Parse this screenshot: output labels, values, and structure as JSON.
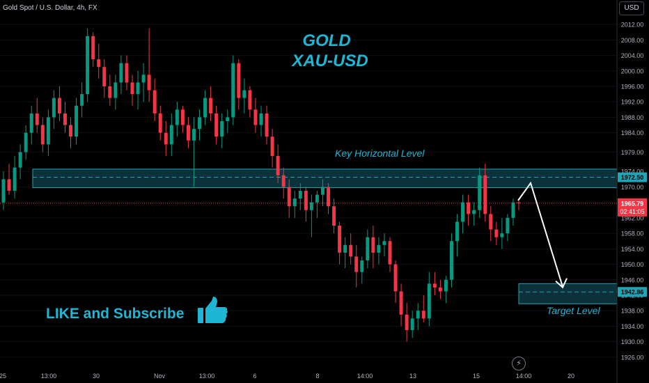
{
  "header": {
    "symbol_label": "Gold Spot / U.S. Dollar, 4h, FX"
  },
  "currency_button": "USD",
  "annotations": {
    "title_line1": "GOLD",
    "title_line2": "XAU-USD",
    "key_level_label": "Key Horizontal Level",
    "target_label": "Target Level",
    "cta": "LIKE and Subscribe"
  },
  "price_tags": {
    "key_level": "1972.50",
    "current_price": "1965.79",
    "countdown": "02:41:05",
    "target": "1942.86"
  },
  "colors": {
    "bull": "#089981",
    "bear": "#f23645",
    "zone_fill": "#0d3b45",
    "zone_border": "#1fa5b5",
    "accent_text": "#1fb6d6",
    "thumbs_up": "#1fb6d6"
  },
  "icons": {
    "thumbs": "thumbs-up-icon",
    "bolt": "lightning-icon"
  },
  "chart_data": {
    "type": "candlestick",
    "ylim": [
      1924,
      2014
    ],
    "y_ticks": [
      2012.0,
      2008.0,
      2004.0,
      2000.0,
      1996.0,
      1992.0,
      1988.0,
      1984.0,
      1979.0,
      1974.0,
      1970.0,
      1966.0,
      1962.0,
      1958.0,
      1954.0,
      1950.0,
      1946.0,
      1942.0,
      1938.0,
      1934.0,
      1930.0,
      1926.0
    ],
    "x_ticks": [
      "25",
      "13:00",
      "30",
      "Nov",
      "13:00",
      "6",
      "8",
      "14:00",
      "13",
      "15",
      "14:00",
      "20"
    ],
    "zones": [
      {
        "name": "Key Horizontal Level",
        "low": 1969.8,
        "high": 1974.6,
        "mid": 1972.5
      },
      {
        "name": "Target Level",
        "low": 1939.8,
        "high": 1945.0,
        "mid": 1942.86
      }
    ],
    "current_price": 1965.79,
    "projection": [
      [
        1971.0,
        1977.5
      ],
      [
        1971.0,
        1966.5
      ],
      [
        1943.5
      ]
    ],
    "candles": [
      [
        1966,
        1974,
        1964,
        1972
      ],
      [
        1972,
        1976,
        1968,
        1969
      ],
      [
        1969,
        1978,
        1967,
        1975
      ],
      [
        1975,
        1981,
        1972,
        1979
      ],
      [
        1979,
        1986,
        1977,
        1984
      ],
      [
        1984,
        1991,
        1981,
        1989
      ],
      [
        1989,
        1993,
        1984,
        1986
      ],
      [
        1986,
        1988,
        1979,
        1981
      ],
      [
        1981,
        1990,
        1978,
        1988
      ],
      [
        1988,
        1995,
        1985,
        1993
      ],
      [
        1993,
        1996,
        1987,
        1989
      ],
      [
        1989,
        1992,
        1984,
        1986
      ],
      [
        1986,
        1988,
        1980,
        1983
      ],
      [
        1983,
        1993,
        1981,
        1991
      ],
      [
        1991,
        1997,
        1988,
        1994
      ],
      [
        1994,
        2011,
        1992,
        2009
      ],
      [
        2009,
        2010,
        2001,
        2003
      ],
      [
        2003,
        2007,
        1998,
        2001
      ],
      [
        2001,
        2003,
        1993,
        1996
      ],
      [
        1996,
        1999,
        1991,
        1993
      ],
      [
        1993,
        1999,
        1990,
        1997
      ],
      [
        1997,
        2004,
        1994,
        2002
      ],
      [
        2002,
        2004,
        1995,
        1997
      ],
      [
        1997,
        1999,
        1991,
        1994
      ],
      [
        1994,
        2000,
        1990,
        1997
      ],
      [
        1997,
        2002,
        1992,
        1999
      ],
      [
        1999,
        2011,
        1992,
        1995
      ],
      [
        1995,
        1998,
        1987,
        1989
      ],
      [
        1989,
        1991,
        1982,
        1984
      ],
      [
        1984,
        1987,
        1978,
        1981
      ],
      [
        1981,
        1989,
        1978,
        1986
      ],
      [
        1986,
        1992,
        1983,
        1990
      ],
      [
        1990,
        1991,
        1984,
        1986
      ],
      [
        1986,
        1988,
        1980,
        1982
      ],
      [
        1982,
        1988,
        1970,
        1985
      ],
      [
        1985,
        1990,
        1982,
        1988
      ],
      [
        1988,
        1995,
        1986,
        1993
      ],
      [
        1993,
        1996,
        1987,
        1989
      ],
      [
        1989,
        1991,
        1981,
        1983
      ],
      [
        1983,
        1989,
        1980,
        1987
      ],
      [
        1987,
        1990,
        1984,
        1988
      ],
      [
        1988,
        2004,
        1986,
        2002
      ],
      [
        2002,
        2003,
        1990,
        1993
      ],
      [
        1993,
        1998,
        1989,
        1995
      ],
      [
        1995,
        1996,
        1988,
        1990
      ],
      [
        1990,
        1993,
        1984,
        1986
      ],
      [
        1986,
        1991,
        1983,
        1989
      ],
      [
        1989,
        1991,
        1981,
        1983
      ],
      [
        1983,
        1985,
        1975,
        1978
      ],
      [
        1978,
        1981,
        1971,
        1973
      ],
      [
        1973,
        1975,
        1967,
        1970
      ],
      [
        1970,
        1972,
        1962,
        1965
      ],
      [
        1965,
        1969,
        1962,
        1967
      ],
      [
        1967,
        1971,
        1964,
        1969
      ],
      [
        1969,
        1970,
        1961,
        1964
      ],
      [
        1964,
        1968,
        1957,
        1966
      ],
      [
        1966,
        1969,
        1962,
        1968
      ],
      [
        1968,
        1972,
        1965,
        1970
      ],
      [
        1970,
        1971,
        1963,
        1965
      ],
      [
        1965,
        1967,
        1958,
        1960
      ],
      [
        1960,
        1961,
        1950,
        1953
      ],
      [
        1953,
        1957,
        1949,
        1955
      ],
      [
        1955,
        1958,
        1950,
        1952
      ],
      [
        1952,
        1955,
        1944,
        1948
      ],
      [
        1948,
        1952,
        1945,
        1951
      ],
      [
        1951,
        1959,
        1949,
        1957
      ],
      [
        1957,
        1960,
        1949,
        1953
      ],
      [
        1953,
        1957,
        1950,
        1955
      ],
      [
        1955,
        1958,
        1952,
        1956
      ],
      [
        1956,
        1957,
        1948,
        1950
      ],
      [
        1950,
        1951,
        1940,
        1943
      ],
      [
        1943,
        1945,
        1934,
        1937
      ],
      [
        1937,
        1940,
        1930,
        1933
      ],
      [
        1933,
        1938,
        1931,
        1936
      ],
      [
        1936,
        1940,
        1933,
        1938
      ],
      [
        1938,
        1942,
        1935,
        1936
      ],
      [
        1936,
        1948,
        1934,
        1945
      ],
      [
        1945,
        1948,
        1942,
        1944
      ],
      [
        1944,
        1946,
        1941,
        1943
      ],
      [
        1943,
        1947,
        1940,
        1946
      ],
      [
        1946,
        1958,
        1944,
        1956
      ],
      [
        1956,
        1963,
        1952,
        1961
      ],
      [
        1961,
        1968,
        1958,
        1966
      ],
      [
        1966,
        1968,
        1960,
        1963
      ],
      [
        1963,
        1966,
        1960,
        1964
      ],
      [
        1964,
        1975,
        1962,
        1973
      ],
      [
        1973,
        1976,
        1961,
        1963
      ],
      [
        1963,
        1965,
        1956,
        1959
      ],
      [
        1959,
        1961,
        1955,
        1957
      ],
      [
        1957,
        1962,
        1954,
        1958
      ],
      [
        1958,
        1963,
        1956,
        1962
      ],
      [
        1962,
        1967,
        1960,
        1966
      ],
      [
        1966,
        1967,
        1964,
        1965.79
      ]
    ]
  }
}
